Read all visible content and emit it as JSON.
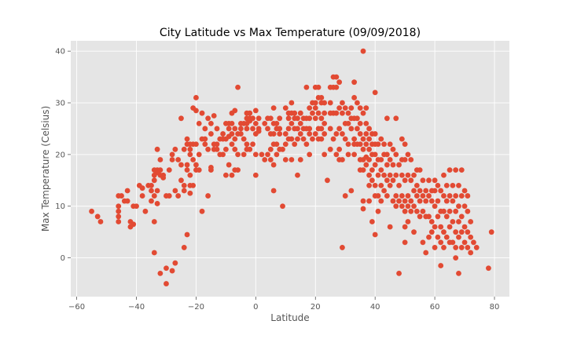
{
  "chart_data": {
    "type": "scatter",
    "title": "City Latitude vs Max Temperature (09/09/2018)",
    "xlabel": "Latitude",
    "ylabel": "Max Temperature (Celsius)",
    "xlim": [
      -62,
      85
    ],
    "ylim": [
      -7.5,
      42
    ],
    "xticks": [
      -60,
      -40,
      -20,
      0,
      20,
      40,
      60,
      80
    ],
    "yticks": [
      0,
      10,
      20,
      30,
      40
    ],
    "grid": true,
    "style": "ggplot",
    "background_color": "#e5e5e5",
    "grid_color": "#ffffff",
    "marker_color": "#e24a33",
    "points": [
      [
        -55,
        9
      ],
      [
        -53,
        8
      ],
      [
        -52,
        7
      ],
      [
        -46,
        10
      ],
      [
        -46,
        9
      ],
      [
        -46,
        8
      ],
      [
        -46,
        7
      ],
      [
        -46,
        12
      ],
      [
        -45,
        12
      ],
      [
        -44,
        11
      ],
      [
        -43,
        11
      ],
      [
        -43,
        13
      ],
      [
        -42,
        7
      ],
      [
        -42,
        6
      ],
      [
        -41,
        6.5
      ],
      [
        -41,
        10
      ],
      [
        -40,
        10
      ],
      [
        -39,
        14
      ],
      [
        -38,
        13.5
      ],
      [
        -38,
        12
      ],
      [
        -37,
        9
      ],
      [
        -36,
        14
      ],
      [
        -35,
        14
      ],
      [
        -35,
        11
      ],
      [
        -35,
        13
      ],
      [
        -34,
        17
      ],
      [
        -34,
        16
      ],
      [
        -34,
        15
      ],
      [
        -34,
        12
      ],
      [
        -34,
        1
      ],
      [
        -34,
        7
      ],
      [
        -33,
        21
      ],
      [
        -33,
        17
      ],
      [
        -33,
        16.5
      ],
      [
        -33,
        13
      ],
      [
        -33,
        10.5
      ],
      [
        -32,
        19
      ],
      [
        -32,
        17
      ],
      [
        -32,
        16
      ],
      [
        -32,
        -3
      ],
      [
        -31,
        16
      ],
      [
        -31,
        15.5
      ],
      [
        -30,
        -5
      ],
      [
        -30,
        12
      ],
      [
        -30,
        -2
      ],
      [
        -29,
        17
      ],
      [
        -29,
        12
      ],
      [
        -28,
        20
      ],
      [
        -28,
        19
      ],
      [
        -28,
        -2.5
      ],
      [
        -27,
        21
      ],
      [
        -27,
        13
      ],
      [
        -27,
        -1
      ],
      [
        -26,
        19
      ],
      [
        -26,
        12
      ],
      [
        -25,
        18
      ],
      [
        -25,
        27
      ],
      [
        -25,
        15
      ],
      [
        -24,
        21
      ],
      [
        -24,
        14
      ],
      [
        -24,
        13
      ],
      [
        -24,
        2
      ],
      [
        -23,
        22
      ],
      [
        -23,
        23
      ],
      [
        -23,
        18
      ],
      [
        -23,
        17
      ],
      [
        -23,
        4.5
      ],
      [
        -22,
        22
      ],
      [
        -22,
        21
      ],
      [
        -22,
        20
      ],
      [
        -22,
        16
      ],
      [
        -22,
        14
      ],
      [
        -22,
        12.5
      ],
      [
        -21,
        22
      ],
      [
        -21,
        29
      ],
      [
        -21,
        19
      ],
      [
        -21,
        14
      ],
      [
        -20,
        28.5
      ],
      [
        -20,
        22
      ],
      [
        -20,
        31
      ],
      [
        -20,
        18
      ],
      [
        -20,
        17
      ],
      [
        -19,
        26
      ],
      [
        -19,
        20
      ],
      [
        -19,
        17
      ],
      [
        -18,
        28
      ],
      [
        -18,
        23
      ],
      [
        -18,
        9
      ],
      [
        -17,
        25
      ],
      [
        -17,
        23
      ],
      [
        -17,
        22
      ],
      [
        -16,
        27
      ],
      [
        -16,
        21
      ],
      [
        -16,
        12
      ],
      [
        -15,
        26
      ],
      [
        -15,
        24
      ],
      [
        -15,
        17.5
      ],
      [
        -15,
        17
      ],
      [
        -14,
        27.5
      ],
      [
        -14,
        22
      ],
      [
        -14,
        21
      ],
      [
        -13,
        25
      ],
      [
        -13,
        22
      ],
      [
        -13,
        21
      ],
      [
        -12,
        23
      ],
      [
        -12,
        20
      ],
      [
        -11,
        24
      ],
      [
        -11,
        23
      ],
      [
        -11,
        20
      ],
      [
        -10,
        26
      ],
      [
        -10,
        23
      ],
      [
        -10,
        21
      ],
      [
        -10,
        16
      ],
      [
        -9,
        26
      ],
      [
        -9,
        25
      ],
      [
        -9,
        23.5
      ],
      [
        -9,
        18
      ],
      [
        -8,
        28
      ],
      [
        -8,
        26
      ],
      [
        -8,
        24
      ],
      [
        -8,
        22
      ],
      [
        -8,
        16
      ],
      [
        -7,
        28.5
      ],
      [
        -7,
        25
      ],
      [
        -7,
        23
      ],
      [
        -7,
        21
      ],
      [
        -7,
        17
      ],
      [
        -6,
        33
      ],
      [
        -6,
        24
      ],
      [
        -6,
        20
      ],
      [
        -6,
        17
      ],
      [
        -5,
        26
      ],
      [
        -5,
        25
      ],
      [
        -5,
        24
      ],
      [
        -4,
        26
      ],
      [
        -4,
        23
      ],
      [
        -4,
        20
      ],
      [
        -3,
        28
      ],
      [
        -3,
        27
      ],
      [
        -3,
        26
      ],
      [
        -3,
        25
      ],
      [
        -3,
        22
      ],
      [
        -3,
        21
      ],
      [
        -2,
        28
      ],
      [
        -2,
        27
      ],
      [
        -2,
        26.5
      ],
      [
        -2,
        21
      ],
      [
        -1,
        27
      ],
      [
        -1,
        25
      ],
      [
        -1,
        22
      ],
      [
        0,
        28.5
      ],
      [
        0,
        26
      ],
      [
        0,
        24
      ],
      [
        0,
        20
      ],
      [
        0,
        16
      ],
      [
        1,
        27
      ],
      [
        1,
        25
      ],
      [
        1,
        24.5
      ],
      [
        2,
        20
      ],
      [
        3,
        19
      ],
      [
        3,
        26
      ],
      [
        4,
        27
      ],
      [
        4,
        25
      ],
      [
        4,
        20
      ],
      [
        5,
        27
      ],
      [
        5,
        24
      ],
      [
        5,
        21
      ],
      [
        5,
        19
      ],
      [
        6,
        29
      ],
      [
        6,
        26
      ],
      [
        6,
        24
      ],
      [
        6,
        22
      ],
      [
        6,
        13
      ],
      [
        6,
        18
      ],
      [
        7,
        26
      ],
      [
        7,
        25
      ],
      [
        7,
        22
      ],
      [
        7,
        20
      ],
      [
        8,
        27
      ],
      [
        8,
        25
      ],
      [
        8,
        24
      ],
      [
        8,
        21
      ],
      [
        9,
        21
      ],
      [
        9,
        10
      ],
      [
        10,
        29
      ],
      [
        10,
        24
      ],
      [
        10,
        22
      ],
      [
        10,
        19
      ],
      [
        11,
        28
      ],
      [
        11,
        27
      ],
      [
        11,
        25
      ],
      [
        11,
        23
      ],
      [
        12,
        30
      ],
      [
        12,
        28
      ],
      [
        12,
        26
      ],
      [
        12,
        23
      ],
      [
        12,
        19
      ],
      [
        13,
        28
      ],
      [
        13,
        27
      ],
      [
        13,
        25
      ],
      [
        13,
        22
      ],
      [
        14,
        27
      ],
      [
        14,
        25
      ],
      [
        14,
        23
      ],
      [
        14,
        16
      ],
      [
        15,
        28
      ],
      [
        15,
        26
      ],
      [
        15,
        24
      ],
      [
        15,
        19
      ],
      [
        16,
        27
      ],
      [
        16,
        25
      ],
      [
        16,
        23
      ],
      [
        17,
        33
      ],
      [
        17,
        27
      ],
      [
        17,
        25
      ],
      [
        17,
        22
      ],
      [
        18,
        29
      ],
      [
        18,
        27
      ],
      [
        18,
        25
      ],
      [
        18,
        24
      ],
      [
        18,
        20
      ],
      [
        19,
        30
      ],
      [
        19,
        28
      ],
      [
        19,
        23
      ],
      [
        20,
        33
      ],
      [
        20,
        30
      ],
      [
        20,
        29
      ],
      [
        20,
        27
      ],
      [
        20,
        24
      ],
      [
        21,
        33
      ],
      [
        21,
        31
      ],
      [
        21,
        28
      ],
      [
        21,
        25
      ],
      [
        21,
        23
      ],
      [
        22,
        31
      ],
      [
        22,
        30
      ],
      [
        22,
        27
      ],
      [
        22,
        25
      ],
      [
        22,
        23
      ],
      [
        23,
        30
      ],
      [
        23,
        28
      ],
      [
        23,
        26
      ],
      [
        23,
        24
      ],
      [
        23,
        20
      ],
      [
        24,
        15
      ],
      [
        25,
        33
      ],
      [
        25,
        30
      ],
      [
        25,
        28
      ],
      [
        25,
        25
      ],
      [
        25,
        21
      ],
      [
        26,
        35
      ],
      [
        26,
        33
      ],
      [
        26,
        28
      ],
      [
        26,
        23
      ],
      [
        27,
        35
      ],
      [
        27,
        33
      ],
      [
        27,
        28
      ],
      [
        27,
        24
      ],
      [
        27,
        20
      ],
      [
        28,
        34
      ],
      [
        28,
        29
      ],
      [
        28,
        25
      ],
      [
        28,
        19
      ],
      [
        28,
        21
      ],
      [
        29,
        30
      ],
      [
        29,
        28
      ],
      [
        29,
        24
      ],
      [
        29,
        19
      ],
      [
        29,
        2
      ],
      [
        30,
        29
      ],
      [
        30,
        26
      ],
      [
        30,
        23
      ],
      [
        30,
        12
      ],
      [
        31,
        28
      ],
      [
        31,
        26
      ],
      [
        31,
        22
      ],
      [
        31,
        20
      ],
      [
        32,
        29
      ],
      [
        32,
        27
      ],
      [
        32,
        25
      ],
      [
        32,
        13
      ],
      [
        33,
        31
      ],
      [
        33,
        34
      ],
      [
        33,
        27
      ],
      [
        33,
        23
      ],
      [
        33,
        22
      ],
      [
        33,
        20
      ],
      [
        34,
        30
      ],
      [
        34,
        27
      ],
      [
        34,
        25
      ],
      [
        34,
        22
      ],
      [
        35,
        29
      ],
      [
        35,
        26
      ],
      [
        35,
        24
      ],
      [
        35,
        22
      ],
      [
        35,
        19
      ],
      [
        35,
        17
      ],
      [
        36,
        40
      ],
      [
        36,
        28
      ],
      [
        36,
        23
      ],
      [
        36,
        21
      ],
      [
        36,
        19
      ],
      [
        36,
        17
      ],
      [
        36,
        11
      ],
      [
        36,
        9.5
      ],
      [
        37,
        29
      ],
      [
        37,
        26
      ],
      [
        37,
        24
      ],
      [
        37,
        22
      ],
      [
        37,
        19.5
      ],
      [
        37,
        18
      ],
      [
        38,
        25
      ],
      [
        38,
        23
      ],
      [
        38,
        21
      ],
      [
        38,
        19
      ],
      [
        38,
        16
      ],
      [
        38,
        14
      ],
      [
        38,
        11
      ],
      [
        39,
        24
      ],
      [
        39,
        22
      ],
      [
        39,
        20
      ],
      [
        39,
        17
      ],
      [
        39,
        15
      ],
      [
        39,
        7
      ],
      [
        40,
        32
      ],
      [
        40,
        24
      ],
      [
        40,
        22
      ],
      [
        40,
        20
      ],
      [
        40,
        18
      ],
      [
        40,
        14
      ],
      [
        40,
        12
      ],
      [
        40,
        4.5
      ],
      [
        41,
        22
      ],
      [
        41,
        19
      ],
      [
        41,
        16
      ],
      [
        41,
        12
      ],
      [
        41,
        9
      ],
      [
        42,
        23
      ],
      [
        42,
        19
      ],
      [
        42,
        17
      ],
      [
        42,
        14
      ],
      [
        42,
        11
      ],
      [
        43,
        22
      ],
      [
        43,
        20
      ],
      [
        43,
        16
      ],
      [
        43,
        13
      ],
      [
        44,
        27
      ],
      [
        44,
        20
      ],
      [
        44,
        18
      ],
      [
        44,
        15
      ],
      [
        44,
        12
      ],
      [
        45,
        22
      ],
      [
        45,
        19
      ],
      [
        45,
        16
      ],
      [
        45,
        14
      ],
      [
        45,
        6
      ],
      [
        46,
        21
      ],
      [
        46,
        18
      ],
      [
        46,
        15
      ],
      [
        46,
        11
      ],
      [
        47,
        27
      ],
      [
        47,
        20
      ],
      [
        47,
        16
      ],
      [
        47,
        12
      ],
      [
        47,
        10
      ],
      [
        48,
        18
      ],
      [
        48,
        14
      ],
      [
        48,
        11
      ],
      [
        48,
        -3
      ],
      [
        49,
        23
      ],
      [
        49,
        19
      ],
      [
        49,
        16
      ],
      [
        49,
        12
      ],
      [
        49,
        10
      ],
      [
        50,
        22
      ],
      [
        50,
        19
      ],
      [
        50,
        15
      ],
      [
        50,
        11
      ],
      [
        50,
        9
      ],
      [
        50,
        6
      ],
      [
        50,
        3
      ],
      [
        51,
        20
      ],
      [
        51,
        16
      ],
      [
        51,
        12
      ],
      [
        51,
        10
      ],
      [
        51,
        7
      ],
      [
        52,
        19
      ],
      [
        52,
        15
      ],
      [
        52,
        11
      ],
      [
        52,
        9
      ],
      [
        53,
        16
      ],
      [
        53,
        13
      ],
      [
        53,
        10
      ],
      [
        53,
        5
      ],
      [
        54,
        17
      ],
      [
        54,
        14
      ],
      [
        54,
        12
      ],
      [
        54,
        9
      ],
      [
        55,
        17
      ],
      [
        55,
        13
      ],
      [
        55,
        11
      ],
      [
        55,
        8
      ],
      [
        56,
        15
      ],
      [
        56,
        12
      ],
      [
        56,
        9
      ],
      [
        56,
        3
      ],
      [
        57,
        13
      ],
      [
        57,
        11
      ],
      [
        57,
        8
      ],
      [
        57,
        1
      ],
      [
        58,
        15
      ],
      [
        58,
        12
      ],
      [
        58,
        8
      ],
      [
        58,
        4
      ],
      [
        59,
        13
      ],
      [
        59,
        11
      ],
      [
        59,
        7
      ],
      [
        59,
        5
      ],
      [
        60,
        15
      ],
      [
        60,
        13
      ],
      [
        60,
        10
      ],
      [
        60,
        6
      ],
      [
        60,
        2
      ],
      [
        61,
        14
      ],
      [
        61,
        11
      ],
      [
        61,
        8
      ],
      [
        61,
        4
      ],
      [
        62,
        13
      ],
      [
        62,
        9
      ],
      [
        62,
        6
      ],
      [
        62,
        3
      ],
      [
        62,
        -1.5
      ],
      [
        63,
        16
      ],
      [
        63,
        12
      ],
      [
        63,
        9
      ],
      [
        63,
        5
      ],
      [
        63,
        2
      ],
      [
        64,
        14
      ],
      [
        64,
        11
      ],
      [
        64,
        8
      ],
      [
        64,
        4
      ],
      [
        65,
        17
      ],
      [
        65,
        12
      ],
      [
        65,
        9
      ],
      [
        65,
        6
      ],
      [
        65,
        3
      ],
      [
        66,
        14
      ],
      [
        66,
        11
      ],
      [
        66,
        7
      ],
      [
        66,
        3
      ],
      [
        67,
        17
      ],
      [
        67,
        12
      ],
      [
        67,
        9
      ],
      [
        67,
        5
      ],
      [
        67,
        2
      ],
      [
        67,
        0
      ],
      [
        68,
        14
      ],
      [
        68,
        10
      ],
      [
        68,
        7
      ],
      [
        68,
        4
      ],
      [
        68,
        -3
      ],
      [
        69,
        17
      ],
      [
        69,
        12
      ],
      [
        69,
        8
      ],
      [
        69,
        5
      ],
      [
        69,
        2
      ],
      [
        70,
        13
      ],
      [
        70,
        10
      ],
      [
        70,
        6
      ],
      [
        70,
        3
      ],
      [
        71,
        12
      ],
      [
        71,
        9
      ],
      [
        71,
        5
      ],
      [
        71,
        2
      ],
      [
        72,
        7
      ],
      [
        72,
        4
      ],
      [
        72,
        1
      ],
      [
        73,
        3
      ],
      [
        74,
        2
      ],
      [
        78,
        -2
      ],
      [
        79,
        5
      ]
    ]
  }
}
